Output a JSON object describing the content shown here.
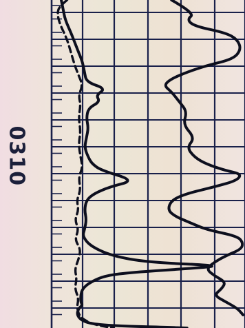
{
  "side_label": "0310",
  "colors": {
    "grid": "#19204a",
    "trace": "#0d0f1e",
    "paper": "#eee4d6"
  },
  "chart_data": {
    "type": "line",
    "title": "",
    "xlabel": "",
    "ylabel": "",
    "grid": true,
    "x_range": [
      0,
      100
    ],
    "y_range": [
      0,
      100
    ],
    "series": [
      {
        "style": "solid",
        "points": [
          [
            5,
            100
          ],
          [
            6,
            97
          ],
          [
            7,
            94
          ],
          [
            10,
            90
          ],
          [
            12,
            87
          ],
          [
            14,
            84
          ],
          [
            16,
            81
          ],
          [
            17,
            78
          ],
          [
            18,
            75
          ],
          [
            28,
            73
          ],
          [
            23,
            71
          ],
          [
            25,
            69
          ],
          [
            19,
            67
          ],
          [
            18,
            64
          ],
          [
            19,
            61
          ],
          [
            18,
            58
          ],
          [
            17,
            55
          ],
          [
            19,
            52
          ],
          [
            21,
            50
          ],
          [
            26,
            48
          ],
          [
            43,
            45
          ],
          [
            30,
            43
          ],
          [
            22,
            41
          ],
          [
            18,
            39
          ],
          [
            17,
            36
          ],
          [
            18,
            33
          ],
          [
            17,
            30
          ],
          [
            16,
            28
          ],
          [
            20,
            25
          ],
          [
            31,
            22
          ],
          [
            50,
            20
          ],
          [
            90,
            19
          ],
          [
            68,
            18
          ],
          [
            42,
            17
          ],
          [
            28,
            16
          ],
          [
            20,
            14
          ],
          [
            16,
            12
          ],
          [
            15,
            10
          ],
          [
            15,
            8
          ],
          [
            16,
            7
          ],
          [
            14,
            6
          ],
          [
            13,
            4
          ],
          [
            16,
            2
          ],
          [
            24,
            1
          ],
          [
            40,
            0.5
          ],
          [
            60,
            0.2
          ],
          [
            70,
            0
          ]
        ]
      },
      {
        "style": "dashed",
        "points": [
          [
            8,
            100
          ],
          [
            4,
            98
          ],
          [
            3,
            96
          ],
          [
            4,
            93
          ],
          [
            8,
            88
          ],
          [
            10,
            84
          ],
          [
            12,
            80
          ],
          [
            14,
            77
          ],
          [
            16,
            74
          ],
          [
            14,
            71
          ],
          [
            15,
            68
          ],
          [
            14,
            64
          ],
          [
            15,
            60
          ],
          [
            14,
            56
          ],
          [
            15,
            52
          ],
          [
            16,
            49
          ],
          [
            14,
            46
          ],
          [
            15,
            42
          ],
          [
            13,
            39
          ],
          [
            14,
            36
          ],
          [
            12,
            33
          ],
          [
            14,
            30
          ],
          [
            12,
            27
          ],
          [
            15,
            24
          ],
          [
            14,
            21
          ],
          [
            12,
            18
          ],
          [
            13,
            15
          ],
          [
            12,
            12
          ],
          [
            14,
            9
          ],
          [
            13,
            6
          ],
          [
            15,
            3
          ],
          [
            22,
            1
          ],
          [
            32,
            0
          ]
        ]
      },
      {
        "style": "solid",
        "points": [
          [
            62,
            100
          ],
          [
            74,
            96
          ],
          [
            70,
            94
          ],
          [
            74,
            92
          ],
          [
            90,
            90
          ],
          [
            96,
            88
          ],
          [
            98,
            85
          ],
          [
            94,
            82
          ],
          [
            80,
            80
          ],
          [
            70,
            78
          ],
          [
            62,
            76
          ],
          [
            58,
            74
          ],
          [
            62,
            72
          ],
          [
            66,
            69
          ],
          [
            70,
            66
          ],
          [
            68,
            62
          ],
          [
            74,
            58
          ],
          [
            70,
            55
          ],
          [
            74,
            52
          ],
          [
            80,
            50
          ],
          [
            90,
            48
          ],
          [
            98,
            47
          ],
          [
            96,
            45
          ],
          [
            84,
            43
          ],
          [
            70,
            41
          ],
          [
            62,
            39
          ],
          [
            60,
            36
          ],
          [
            64,
            34
          ],
          [
            72,
            32
          ],
          [
            80,
            30
          ],
          [
            96,
            28
          ],
          [
            99,
            26
          ],
          [
            98,
            24
          ],
          [
            90,
            22
          ],
          [
            84,
            20
          ],
          [
            80,
            18
          ],
          [
            84,
            16
          ],
          [
            90,
            14
          ],
          [
            88,
            12
          ],
          [
            84,
            10
          ],
          [
            90,
            8
          ],
          [
            96,
            6
          ],
          [
            99,
            4
          ]
        ]
      }
    ]
  }
}
